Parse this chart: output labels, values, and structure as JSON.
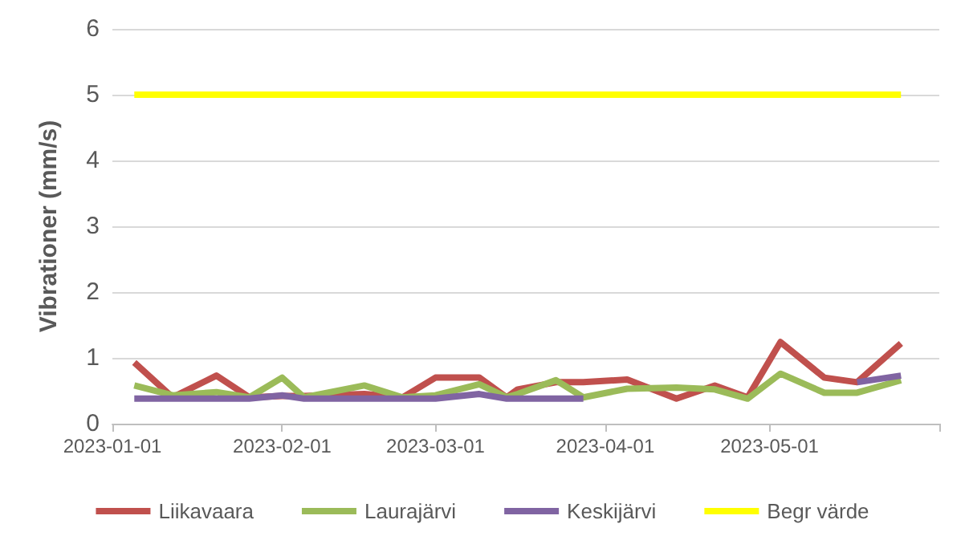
{
  "chart_data": {
    "type": "line",
    "ylabel": "Vibrationer (mm/s)",
    "x": [
      "2023-01-05",
      "2023-01-12",
      "2023-01-20",
      "2023-01-26",
      "2023-02-01",
      "2023-02-05",
      "2023-02-16",
      "2023-02-23",
      "2023-03-01",
      "2023-03-09",
      "2023-03-14",
      "2023-03-16",
      "2023-03-23",
      "2023-03-28",
      "2023-04-05",
      "2023-04-14",
      "2023-04-21",
      "2023-04-27",
      "2023-05-03",
      "2023-05-11",
      "2023-05-17",
      "2023-05-25"
    ],
    "series": [
      {
        "name": "Liikavaara",
        "color": "#c0504d",
        "values": [
          0.93,
          0.4,
          0.73,
          0.4,
          0.42,
          0.42,
          0.45,
          0.4,
          0.7,
          0.7,
          0.4,
          0.52,
          0.63,
          0.63,
          0.67,
          0.38,
          0.58,
          0.4,
          1.24,
          0.7,
          0.63,
          1.22
        ]
      },
      {
        "name": "Laurajärvi",
        "color": "#9bbb59",
        "values": [
          0.58,
          0.43,
          0.48,
          0.4,
          0.7,
          0.4,
          0.58,
          0.4,
          0.43,
          0.6,
          0.4,
          0.45,
          0.66,
          0.4,
          0.53,
          0.55,
          0.52,
          0.38,
          0.76,
          0.47,
          0.47,
          0.66
        ]
      },
      {
        "name": "Keskijärvi",
        "color": "#8064a2",
        "values": [
          0.38,
          0.38,
          0.38,
          0.38,
          0.43,
          0.38,
          0.38,
          0.38,
          0.38,
          0.45,
          0.38,
          0.38,
          0.38,
          0.38,
          null,
          null,
          null,
          null,
          null,
          null,
          0.63,
          0.73
        ]
      },
      {
        "name": "Begr värde",
        "color": "#ffff00",
        "x": [
          "2023-01-05",
          "2023-05-25"
        ],
        "values": [
          5,
          5
        ]
      }
    ],
    "xlim": [
      "2023-01-01",
      "2023-06-01"
    ],
    "xticks": [
      "2023-01-01",
      "2023-02-01",
      "2023-03-01",
      "2023-04-01",
      "2023-05-01",
      {
        "value": "2023-06-01",
        "label": null
      }
    ],
    "ylim": [
      0,
      6
    ],
    "yticks": [
      0,
      1,
      2,
      3,
      4,
      5,
      6
    ],
    "grid": "y",
    "legend": "bottom",
    "marker": "none",
    "line_style": "solid"
  }
}
